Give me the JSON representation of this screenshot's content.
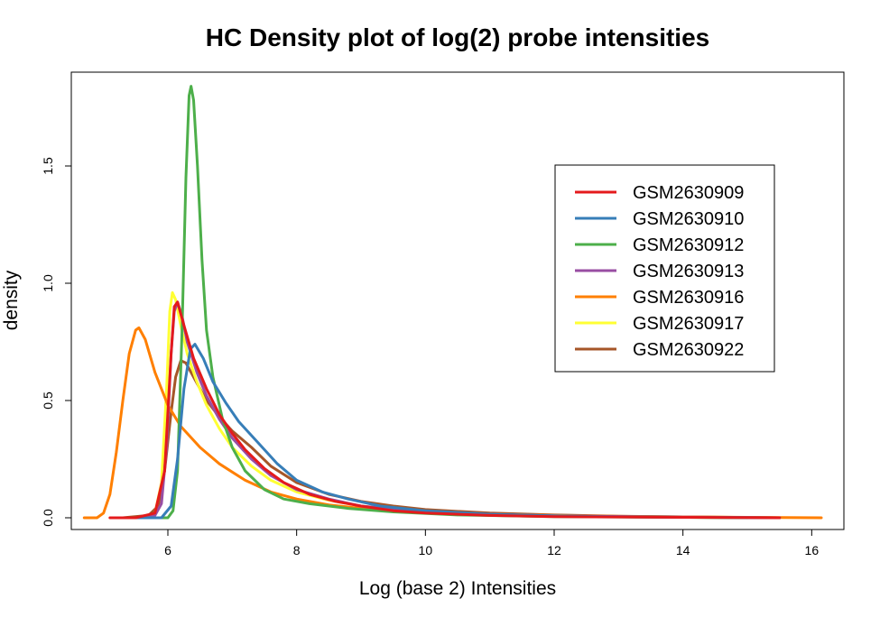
{
  "chart_data": {
    "type": "line",
    "title": "HC Density plot of log(2) probe intensities",
    "xlabel": "Log (base 2) Intensities",
    "ylabel": "density",
    "xlim": [
      4.5,
      16.5
    ],
    "ylim": [
      -0.05,
      1.9
    ],
    "xticks": [
      6,
      8,
      10,
      12,
      14,
      16
    ],
    "yticks": [
      0.0,
      0.5,
      1.0,
      1.5
    ],
    "xtick_labels": [
      "6",
      "8",
      "10",
      "12",
      "14",
      "16"
    ],
    "ytick_labels": [
      "0.0",
      "0.5",
      "1.0",
      "1.5"
    ],
    "grid": false,
    "legend_position": "top-right",
    "series": [
      {
        "name": "GSM2630909",
        "color": "#E41A1C",
        "points": [
          [
            5.1,
            0.0
          ],
          [
            5.5,
            0.0
          ],
          [
            5.8,
            0.02
          ],
          [
            5.95,
            0.2
          ],
          [
            6.05,
            0.7
          ],
          [
            6.1,
            0.9
          ],
          [
            6.15,
            0.92
          ],
          [
            6.25,
            0.82
          ],
          [
            6.4,
            0.68
          ],
          [
            6.6,
            0.55
          ],
          [
            6.8,
            0.44
          ],
          [
            7.0,
            0.36
          ],
          [
            7.2,
            0.29
          ],
          [
            7.5,
            0.21
          ],
          [
            7.8,
            0.15
          ],
          [
            8.2,
            0.1
          ],
          [
            8.6,
            0.07
          ],
          [
            9.0,
            0.05
          ],
          [
            9.5,
            0.03
          ],
          [
            10.0,
            0.02
          ],
          [
            11.0,
            0.01
          ],
          [
            12.0,
            0.005
          ],
          [
            14.0,
            0.002
          ],
          [
            15.5,
            0.0
          ]
        ]
      },
      {
        "name": "GSM2630910",
        "color": "#377EB8",
        "points": [
          [
            5.5,
            0.0
          ],
          [
            5.9,
            0.0
          ],
          [
            6.05,
            0.05
          ],
          [
            6.15,
            0.25
          ],
          [
            6.25,
            0.55
          ],
          [
            6.35,
            0.72
          ],
          [
            6.42,
            0.74
          ],
          [
            6.55,
            0.68
          ],
          [
            6.7,
            0.58
          ],
          [
            6.9,
            0.49
          ],
          [
            7.1,
            0.41
          ],
          [
            7.4,
            0.32
          ],
          [
            7.7,
            0.23
          ],
          [
            8.0,
            0.16
          ],
          [
            8.4,
            0.11
          ],
          [
            8.8,
            0.08
          ],
          [
            9.3,
            0.05
          ],
          [
            10.0,
            0.03
          ],
          [
            11.0,
            0.015
          ],
          [
            12.0,
            0.008
          ],
          [
            13.0,
            0.004
          ],
          [
            14.0,
            0.002
          ],
          [
            15.5,
            0.0
          ]
        ]
      },
      {
        "name": "GSM2630912",
        "color": "#4DAF4A",
        "points": [
          [
            5.7,
            0.0
          ],
          [
            6.0,
            0.0
          ],
          [
            6.08,
            0.03
          ],
          [
            6.15,
            0.2
          ],
          [
            6.22,
            0.8
          ],
          [
            6.28,
            1.45
          ],
          [
            6.33,
            1.8
          ],
          [
            6.36,
            1.84
          ],
          [
            6.4,
            1.78
          ],
          [
            6.46,
            1.5
          ],
          [
            6.53,
            1.1
          ],
          [
            6.6,
            0.8
          ],
          [
            6.7,
            0.6
          ],
          [
            6.85,
            0.42
          ],
          [
            7.0,
            0.3
          ],
          [
            7.2,
            0.2
          ],
          [
            7.5,
            0.12
          ],
          [
            7.8,
            0.08
          ],
          [
            8.2,
            0.06
          ],
          [
            8.8,
            0.04
          ],
          [
            9.5,
            0.025
          ],
          [
            10.5,
            0.012
          ],
          [
            12.0,
            0.005
          ],
          [
            14.0,
            0.002
          ],
          [
            15.0,
            0.0
          ]
        ]
      },
      {
        "name": "GSM2630913",
        "color": "#984EA3",
        "points": [
          [
            5.5,
            0.0
          ],
          [
            5.8,
            0.01
          ],
          [
            5.9,
            0.06
          ],
          [
            5.98,
            0.3
          ],
          [
            6.05,
            0.7
          ],
          [
            6.1,
            0.88
          ],
          [
            6.15,
            0.92
          ],
          [
            6.22,
            0.86
          ],
          [
            6.3,
            0.75
          ],
          [
            6.45,
            0.62
          ],
          [
            6.6,
            0.52
          ],
          [
            6.8,
            0.42
          ],
          [
            7.0,
            0.34
          ],
          [
            7.3,
            0.25
          ],
          [
            7.6,
            0.18
          ],
          [
            8.0,
            0.12
          ],
          [
            8.5,
            0.08
          ],
          [
            9.0,
            0.05
          ],
          [
            9.8,
            0.03
          ],
          [
            11.0,
            0.015
          ],
          [
            12.0,
            0.008
          ],
          [
            14.0,
            0.003
          ],
          [
            15.5,
            0.0
          ]
        ]
      },
      {
        "name": "GSM2630916",
        "color": "#FF7F00",
        "points": [
          [
            4.7,
            0.0
          ],
          [
            4.9,
            0.0
          ],
          [
            5.0,
            0.02
          ],
          [
            5.1,
            0.1
          ],
          [
            5.2,
            0.28
          ],
          [
            5.3,
            0.5
          ],
          [
            5.4,
            0.7
          ],
          [
            5.5,
            0.8
          ],
          [
            5.55,
            0.81
          ],
          [
            5.65,
            0.76
          ],
          [
            5.8,
            0.62
          ],
          [
            6.0,
            0.48
          ],
          [
            6.2,
            0.39
          ],
          [
            6.5,
            0.3
          ],
          [
            6.8,
            0.23
          ],
          [
            7.2,
            0.16
          ],
          [
            7.6,
            0.11
          ],
          [
            8.0,
            0.08
          ],
          [
            8.5,
            0.055
          ],
          [
            9.0,
            0.04
          ],
          [
            10.0,
            0.025
          ],
          [
            11.0,
            0.015
          ],
          [
            12.0,
            0.01
          ],
          [
            13.0,
            0.006
          ],
          [
            14.0,
            0.004
          ],
          [
            15.0,
            0.002
          ],
          [
            16.15,
            0.0
          ]
        ]
      },
      {
        "name": "GSM2630917",
        "color": "#FFFF33",
        "points": [
          [
            5.6,
            0.0
          ],
          [
            5.8,
            0.02
          ],
          [
            5.9,
            0.15
          ],
          [
            5.98,
            0.55
          ],
          [
            6.03,
            0.88
          ],
          [
            6.07,
            0.96
          ],
          [
            6.12,
            0.93
          ],
          [
            6.2,
            0.82
          ],
          [
            6.3,
            0.7
          ],
          [
            6.45,
            0.58
          ],
          [
            6.6,
            0.48
          ],
          [
            6.8,
            0.38
          ],
          [
            7.0,
            0.3
          ],
          [
            7.3,
            0.22
          ],
          [
            7.6,
            0.16
          ],
          [
            8.0,
            0.11
          ],
          [
            8.5,
            0.075
          ],
          [
            9.0,
            0.05
          ],
          [
            10.0,
            0.025
          ],
          [
            11.0,
            0.012
          ],
          [
            12.0,
            0.006
          ],
          [
            14.0,
            0.002
          ],
          [
            15.0,
            0.0
          ]
        ]
      },
      {
        "name": "GSM2630922",
        "color": "#A65628",
        "points": [
          [
            5.3,
            0.0
          ],
          [
            5.7,
            0.01
          ],
          [
            5.85,
            0.05
          ],
          [
            5.95,
            0.2
          ],
          [
            6.05,
            0.45
          ],
          [
            6.12,
            0.6
          ],
          [
            6.2,
            0.67
          ],
          [
            6.28,
            0.66
          ],
          [
            6.4,
            0.6
          ],
          [
            6.6,
            0.5
          ],
          [
            6.8,
            0.43
          ],
          [
            7.0,
            0.37
          ],
          [
            7.3,
            0.3
          ],
          [
            7.6,
            0.22
          ],
          [
            8.0,
            0.15
          ],
          [
            8.5,
            0.1
          ],
          [
            9.0,
            0.07
          ],
          [
            9.5,
            0.05
          ],
          [
            10.0,
            0.035
          ],
          [
            11.0,
            0.02
          ],
          [
            12.0,
            0.012
          ],
          [
            13.0,
            0.007
          ],
          [
            14.0,
            0.004
          ],
          [
            15.5,
            0.0
          ]
        ]
      }
    ]
  }
}
